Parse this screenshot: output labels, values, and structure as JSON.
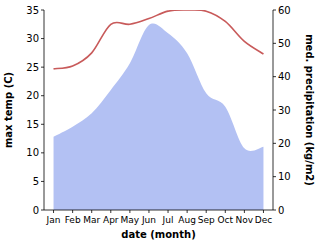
{
  "chart_data": {
    "type": "line",
    "x_label": "date (month)",
    "y_label": "max temp (C)",
    "y2_label": "med. precipitation (kg/m2)",
    "categories": [
      "Jan",
      "Feb",
      "Mar",
      "Apr",
      "May",
      "Jun",
      "Jul",
      "Aug",
      "Sep",
      "Oct",
      "Nov",
      "Dec"
    ],
    "series": [
      {
        "type": "area",
        "axis": "y2",
        "color": "#b3c1f3",
        "values": [
          22,
          25,
          29,
          36,
          44,
          55.5,
          53,
          47,
          35,
          31,
          18.5,
          19
        ]
      },
      {
        "type": "line",
        "color": "#c85a5a",
        "values": [
          24.7,
          25.2,
          27.5,
          32.5,
          32.5,
          33.5,
          34.8,
          35,
          34.8,
          33,
          29.5,
          27.3
        ]
      }
    ],
    "ylim": [
      0,
      35
    ],
    "yticks": [
      0,
      5,
      10,
      15,
      20,
      25,
      30,
      35
    ],
    "y2lim": [
      0,
      60
    ],
    "y2ticks": [
      0,
      10,
      20,
      30,
      40,
      50,
      60
    ]
  }
}
